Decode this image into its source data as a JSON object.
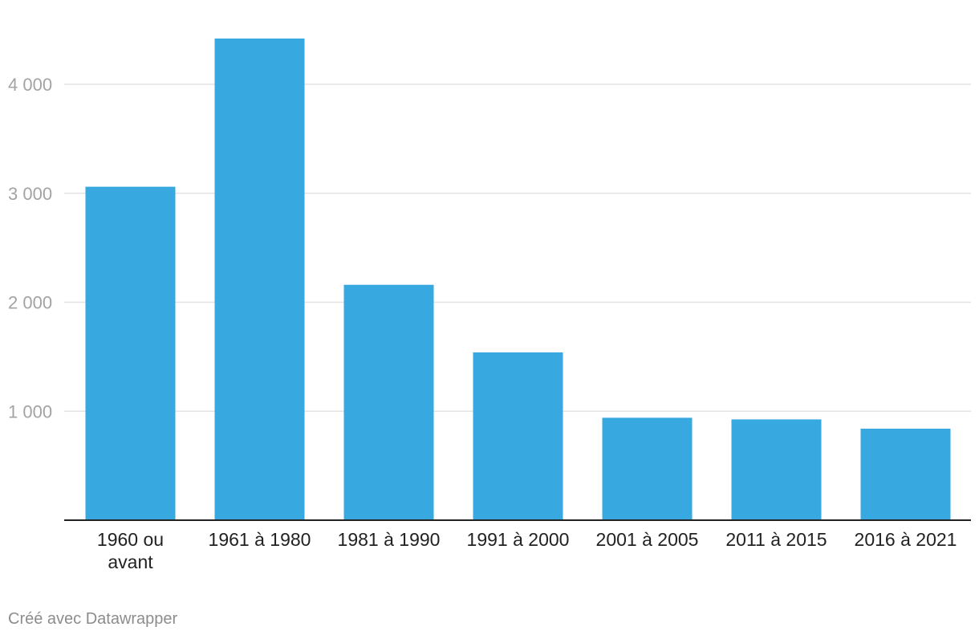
{
  "chart_data": {
    "type": "bar",
    "categories": [
      "1960 ou avant",
      "1961 à 1980",
      "1981 à 1990",
      "1991 à 2000",
      "2001 à 2005",
      "2011 à 2015",
      "2016 à 2021"
    ],
    "category_lines": [
      [
        "1960 ou",
        "avant"
      ],
      [
        "1961 à 1980"
      ],
      [
        "1981 à 1990"
      ],
      [
        "1991 à 2000"
      ],
      [
        "2001 à 2005"
      ],
      [
        "2011 à 2015"
      ],
      [
        "2016 à 2021"
      ]
    ],
    "values": [
      3060,
      4420,
      2160,
      1540,
      940,
      925,
      840
    ],
    "yticks": [
      1000,
      2000,
      3000,
      4000
    ],
    "ytick_labels": [
      "1 000",
      "2 000",
      "3 000",
      "4 000"
    ],
    "ylim": [
      0,
      4420
    ],
    "grid": true,
    "bar_color": "#38a9e0",
    "title": "",
    "xlabel": "",
    "ylabel": ""
  },
  "footer": {
    "credit": "Créé avec Datawrapper"
  }
}
